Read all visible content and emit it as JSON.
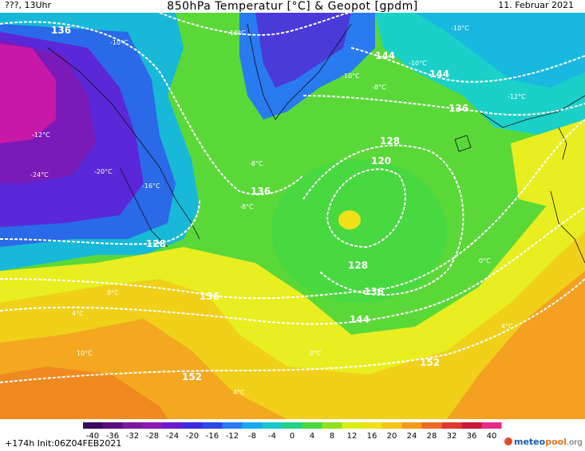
{
  "header": {
    "left": "???, 13Uhr",
    "title": "850hPa Temperatur [°C] & Geopot [gpdm]",
    "date": "11. Februar 2021"
  },
  "footer": {
    "run": "+174h  Init:06Z04FEB2021",
    "logo_part1": "meteo",
    "logo_part2": "pool",
    "logo_part3": ".org"
  },
  "legend": {
    "labels": [
      "-40",
      "-36",
      "-32",
      "-28",
      "-24",
      "-20",
      "-16",
      "-12",
      "-8",
      "-4",
      "0",
      "4",
      "8",
      "12",
      "16",
      "20",
      "24",
      "28",
      "32",
      "36",
      "40"
    ],
    "colors": [
      "#3a0a5a",
      "#5a0f7a",
      "#7a1a9a",
      "#8a1ab4",
      "#6a1acc",
      "#3a2ade",
      "#2a4ae8",
      "#2a7af0",
      "#1aa8f0",
      "#18c8c8",
      "#20d088",
      "#48d840",
      "#90e020",
      "#d8ee18",
      "#f0e018",
      "#f4c418",
      "#f49a20",
      "#ee6a26",
      "#e03a2c",
      "#c81a3c",
      "#e82a8a"
    ]
  },
  "map": {
    "temperature_labels": [
      "-24°C",
      "-20°C",
      "-16°C",
      "-12°C",
      "-10°C",
      "-10°C",
      "-10°C",
      "-10°C",
      "-10°C",
      "-8°C",
      "-8°C",
      "-8°C",
      "-12°C",
      "0°C",
      "0°C",
      "0°C",
      "4°C",
      "4°C",
      "4°C",
      "10°C"
    ],
    "geopot_labels": [
      "136",
      "136",
      "136",
      "136",
      "144",
      "144",
      "128",
      "120",
      "128",
      "128",
      "136",
      "144",
      "152",
      "152"
    ]
  }
}
